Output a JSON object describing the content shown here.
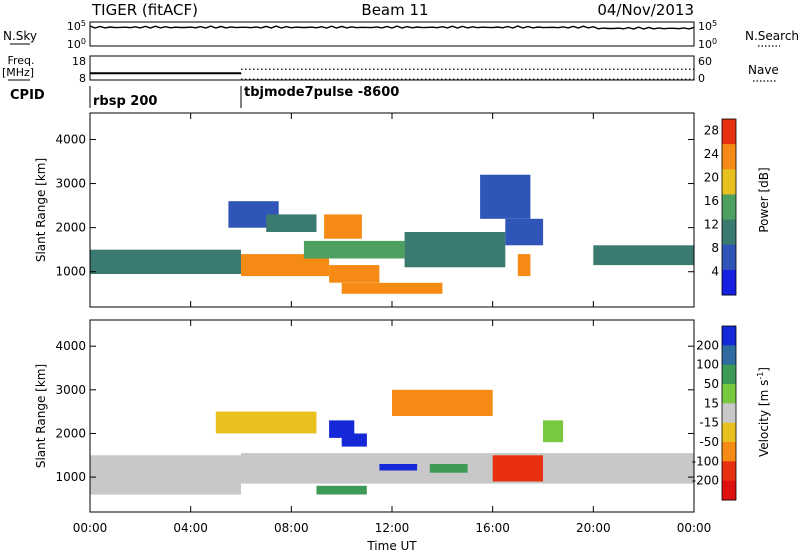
{
  "header": {
    "station": "TIGER (fitACF)",
    "beam": "Beam 11",
    "date": "04/Nov/2013"
  },
  "colors": {
    "background": "#ffffff",
    "axis": "#000000",
    "no_data": "#ffffff",
    "ground_scatter": "#bebebe"
  },
  "nsky": {
    "label": "N.Sky",
    "ticks": [
      "10^5",
      "10^0"
    ],
    "right_ticks": [
      "10^5",
      "10^0"
    ],
    "right_label": "N.Search"
  },
  "freq": {
    "label_line1": "Freq.",
    "label_line2": "[MHz]",
    "ticks": [
      18,
      8
    ],
    "right_ticks": [
      60,
      0
    ],
    "right_label": "Nave",
    "segments": [
      {
        "t0": 0.0,
        "t1": 6.0,
        "value": 10.8
      },
      {
        "t0": 6.0,
        "t1": 24.0,
        "value": 10.8
      }
    ],
    "nave_level": 4
  },
  "cpid": {
    "label": "CPID",
    "entries": [
      {
        "t0": 0.0,
        "name": "rbsp 200"
      },
      {
        "t0": 6.0,
        "name": "tbjmode7pulse -8600"
      }
    ]
  },
  "chart_data": [
    {
      "type": "heatmap",
      "title": "",
      "xlabel": "Time UT",
      "ylabel": "Slant Range [km]",
      "xlim": [
        0,
        24
      ],
      "ylim": [
        200,
        4600
      ],
      "x_ticks": [
        "00:00",
        "04:00",
        "08:00",
        "12:00",
        "16:00",
        "20:00",
        "00:00"
      ],
      "y_ticks": [
        1000,
        2000,
        3000,
        4000
      ],
      "colorbar": {
        "label": "Power [dB]",
        "ticks": [
          4,
          8,
          12,
          16,
          20,
          24,
          28
        ],
        "range": [
          0,
          30
        ],
        "colors": [
          "#1520e0",
          "#2f55b8",
          "#3a7a70",
          "#4ea060",
          "#e8c020",
          "#f58a15",
          "#e83010"
        ]
      },
      "regions": [
        {
          "t0": 0.0,
          "t1": 6.0,
          "r0": 950,
          "r1": 1500,
          "value": 11
        },
        {
          "t0": 6.0,
          "t1": 9.5,
          "r0": 900,
          "r1": 1400,
          "value": 22
        },
        {
          "t0": 9.5,
          "t1": 11.5,
          "r0": 750,
          "r1": 1150,
          "value": 22
        },
        {
          "t0": 8.5,
          "t1": 12.5,
          "r0": 1300,
          "r1": 1700,
          "value": 13
        },
        {
          "t0": 12.5,
          "t1": 16.5,
          "r0": 1100,
          "r1": 1900,
          "value": 10
        },
        {
          "t0": 16.5,
          "t1": 18.0,
          "r0": 1600,
          "r1": 2200,
          "value": 8
        },
        {
          "t0": 20.0,
          "t1": 24.0,
          "r0": 1150,
          "r1": 1600,
          "value": 9
        },
        {
          "t0": 5.5,
          "t1": 7.5,
          "r0": 2000,
          "r1": 2600,
          "value": 8
        },
        {
          "t0": 7.0,
          "t1": 9.0,
          "r0": 1900,
          "r1": 2300,
          "value": 11
        },
        {
          "t0": 9.3,
          "t1": 10.8,
          "r0": 1750,
          "r1": 2300,
          "value": 25
        },
        {
          "t0": 10.0,
          "t1": 14.0,
          "r0": 500,
          "r1": 750,
          "value": 23
        },
        {
          "t0": 15.5,
          "t1": 17.5,
          "r0": 2200,
          "r1": 3200,
          "value": 5
        },
        {
          "t0": 17.0,
          "t1": 17.5,
          "r0": 900,
          "r1": 1400,
          "value": 24
        }
      ]
    },
    {
      "type": "heatmap",
      "title": "",
      "xlabel": "Time UT",
      "ylabel": "Slant Range [km]",
      "xlim": [
        0,
        24
      ],
      "ylim": [
        200,
        4600
      ],
      "x_ticks": [
        "00:00",
        "04:00",
        "08:00",
        "12:00",
        "16:00",
        "20:00",
        "00:00"
      ],
      "y_ticks": [
        1000,
        2000,
        3000,
        4000
      ],
      "colorbar": {
        "label": "Velocity [m s^-1]",
        "ticks": [
          200,
          100,
          50,
          15,
          -15,
          -50,
          -100,
          -200
        ],
        "colors": [
          "#1528d8",
          "#2f6aa0",
          "#3d9a55",
          "#78c840",
          "#c8c8c8",
          "#e8c020",
          "#f58a15",
          "#e83010",
          "#e01010"
        ]
      },
      "regions": [
        {
          "t0": 0.0,
          "t1": 6.0,
          "r0": 600,
          "r1": 1500,
          "value": 0
        },
        {
          "t0": 6.0,
          "t1": 24.0,
          "r0": 850,
          "r1": 1550,
          "value": 0
        },
        {
          "t0": 5.0,
          "t1": 9.0,
          "r0": 2000,
          "r1": 2500,
          "value": -30
        },
        {
          "t0": 9.5,
          "t1": 10.5,
          "r0": 1900,
          "r1": 2300,
          "value": 250
        },
        {
          "t0": 10.0,
          "t1": 11.0,
          "r0": 1700,
          "r1": 2000,
          "value": 200
        },
        {
          "t0": 11.5,
          "t1": 13.0,
          "r0": 1150,
          "r1": 1300,
          "value": 200
        },
        {
          "t0": 13.5,
          "t1": 15.0,
          "r0": 1100,
          "r1": 1300,
          "value": 60
        },
        {
          "t0": 9.0,
          "t1": 11.0,
          "r0": 600,
          "r1": 800,
          "value": 50
        },
        {
          "t0": 16.0,
          "t1": 18.0,
          "r0": 900,
          "r1": 1500,
          "value": -120
        },
        {
          "t0": 18.0,
          "t1": 18.8,
          "r0": 1800,
          "r1": 2300,
          "value": 40
        },
        {
          "t0": 12.0,
          "t1": 16.0,
          "r0": 2400,
          "r1": 3000,
          "value": -60
        }
      ]
    }
  ]
}
